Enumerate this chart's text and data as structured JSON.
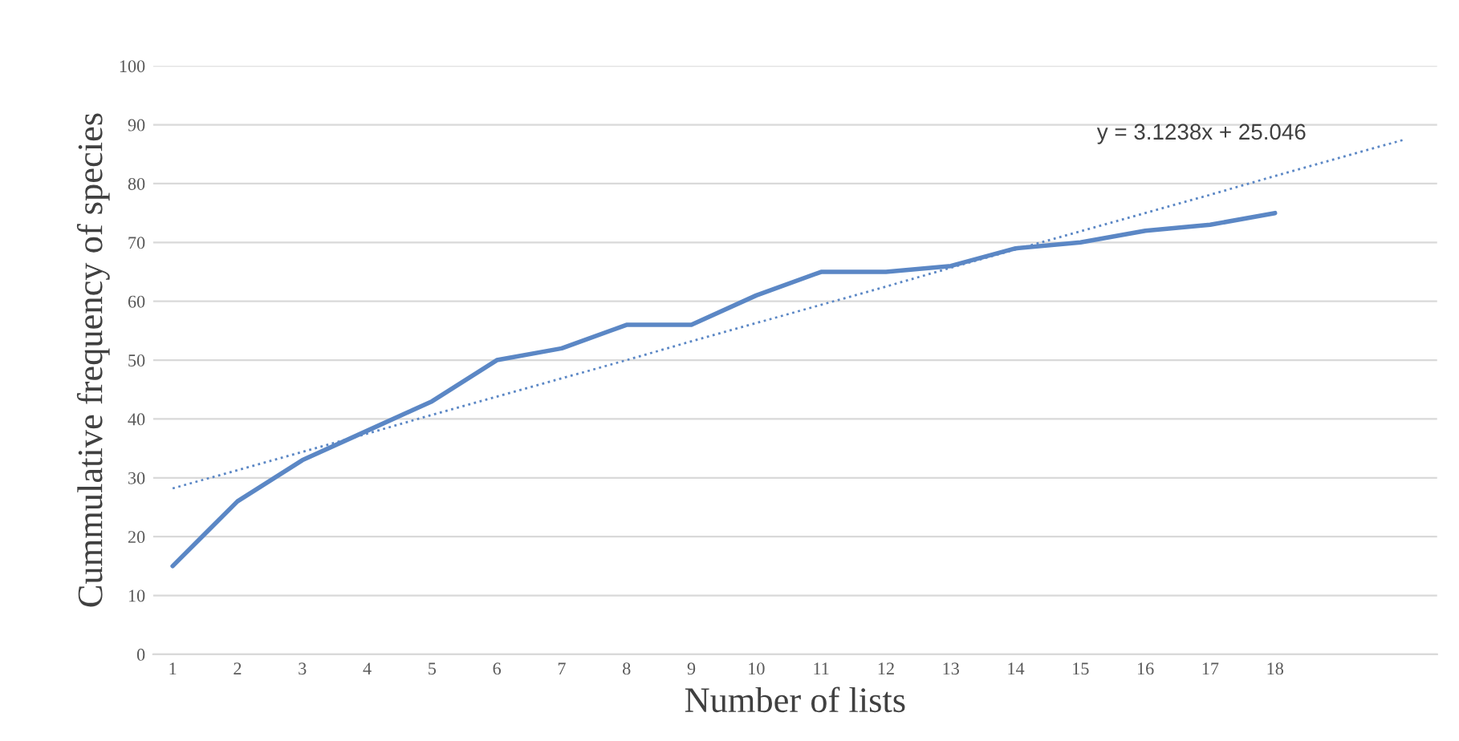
{
  "chart_data": {
    "type": "line",
    "xlabel": "Number of lists",
    "ylabel": "Cummulative frequency of species",
    "categories": [
      "1",
      "2",
      "3",
      "4",
      "5",
      "6",
      "7",
      "8",
      "9",
      "10",
      "11",
      "12",
      "13",
      "14",
      "15",
      "16",
      "17",
      "18",
      null,
      null
    ],
    "series": [
      {
        "color": "#5b87c5",
        "values": [
          15,
          26,
          33,
          38,
          43,
          50,
          52,
          56,
          56,
          61,
          65,
          65,
          66,
          69,
          70,
          72,
          73,
          75,
          null,
          null
        ],
        "line_style": "solid"
      },
      {
        "color": "#5b87c5",
        "values": [
          28.2,
          31.3,
          34.4,
          37.5,
          40.7,
          43.8,
          46.9,
          50.0,
          53.2,
          56.3,
          59.4,
          62.5,
          65.7,
          68.8,
          71.9,
          75.0,
          78.1,
          81.3,
          84.4,
          87.5
        ],
        "line_style": "dotted"
      }
    ],
    "annotations": [
      "y = 3.1238x + 25.046"
    ],
    "ylim": [
      0,
      100
    ],
    "yticks": [
      0,
      10,
      20,
      30,
      40,
      50,
      60,
      70,
      80,
      90,
      100
    ],
    "grid": "y",
    "legend": false,
    "marker": "none"
  }
}
